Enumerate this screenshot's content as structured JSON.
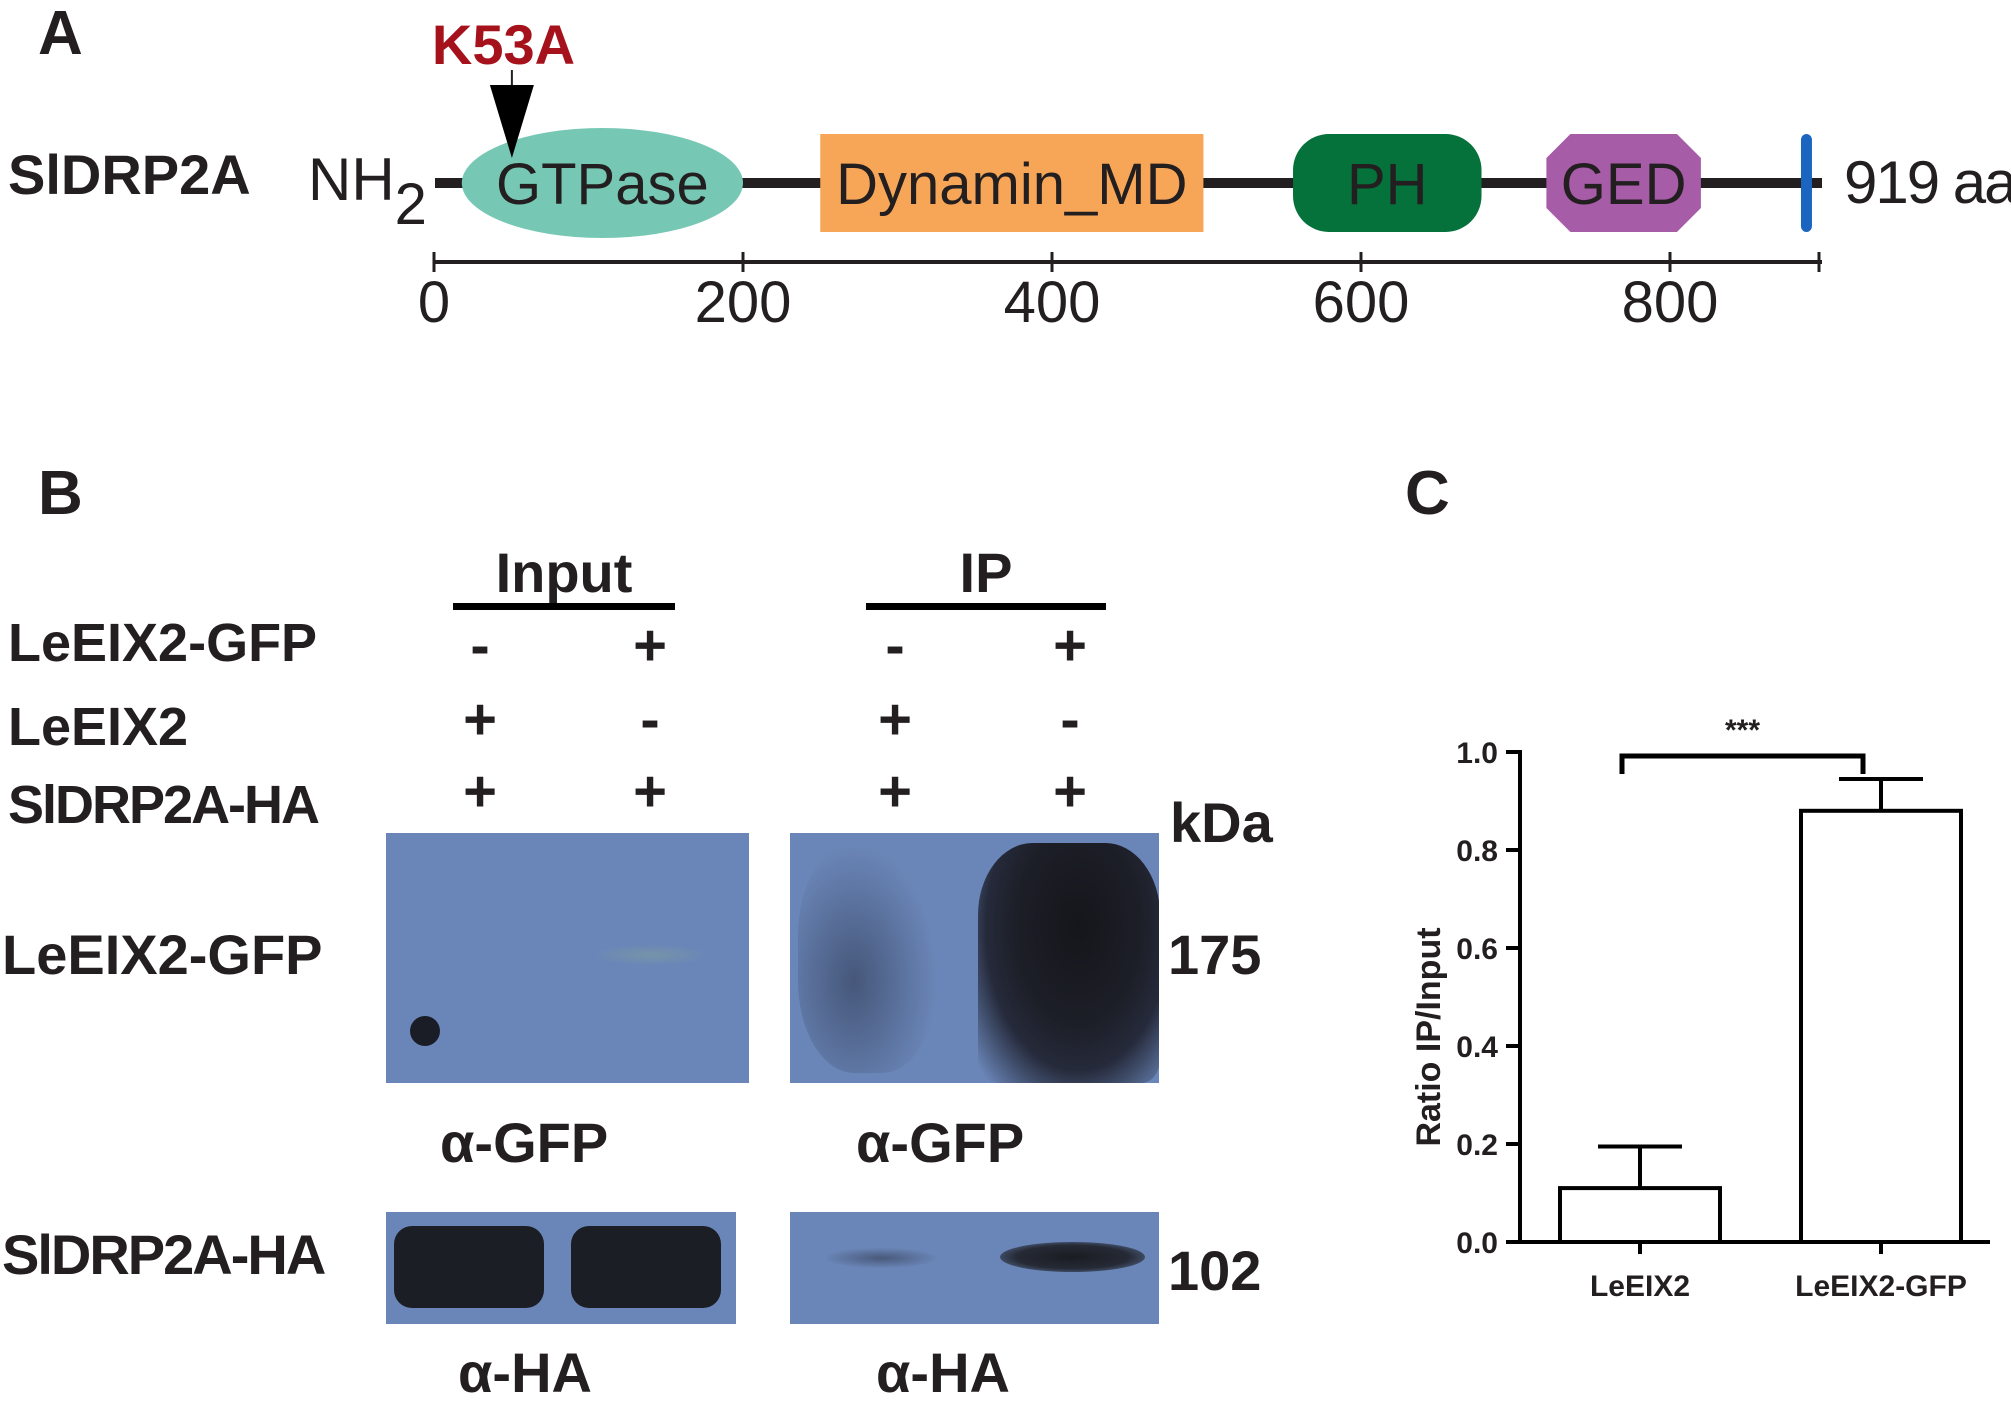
{
  "panel_a": {
    "label": "A",
    "protein_name": "SlDRP2A",
    "n_terminus": "NH",
    "n_terminus_sub": "2",
    "length_label": "919 aa",
    "mutation_label": "K53A",
    "mutation_color": "#a6121b",
    "domains": [
      {
        "name": "GTPase",
        "start": 18,
        "end": 200,
        "shape": "ellipse",
        "color": "#76c8b5"
      },
      {
        "name": "Dynamin_MD",
        "start": 250,
        "end": 498,
        "shape": "rect",
        "color": "#f7a657"
      },
      {
        "name": "PH",
        "start": 556,
        "end": 678,
        "shape": "rounded",
        "color": "#05713b"
      },
      {
        "name": "GED",
        "start": 720,
        "end": 820,
        "shape": "octagon",
        "color": "#a65ca6"
      }
    ],
    "marker": {
      "position": 888,
      "color": "#1b64c0"
    },
    "scale_ticks": [
      "0",
      "200",
      "400",
      "600",
      "800"
    ]
  },
  "panel_b": {
    "label": "B",
    "group_input": "Input",
    "group_ip": "IP",
    "row_labels": [
      "LeEIX2-GFP",
      "LeEIX2",
      "SlDRP2A-HA"
    ],
    "signs": [
      [
        "-",
        "+",
        "-",
        "+"
      ],
      [
        "+",
        "-",
        "+",
        "-"
      ],
      [
        "+",
        "+",
        "+",
        "+"
      ]
    ],
    "kda_label": "kDa",
    "blot_labels": {
      "gfp": "LeEIX2-GFP",
      "ha": "SlDRP2A-HA"
    },
    "antibody_gfp": "α-GFP",
    "antibody_ha": "α-HA",
    "mw_markers": {
      "gfp": "175",
      "ha": "102"
    },
    "blot_color": "#6a86b8"
  },
  "panel_c": {
    "label": "C",
    "chart_data": {
      "type": "bar",
      "categories": [
        "LeEIX2",
        "LeEIX2-GFP"
      ],
      "values": [
        0.11,
        0.88
      ],
      "error_bars": [
        0.085,
        0.065
      ],
      "ylabel": "Ratio IP/Input",
      "ylim": [
        0,
        1.0
      ],
      "yticks": [
        "0.0",
        "0.2",
        "0.4",
        "0.6",
        "0.8",
        "1.0"
      ],
      "significance": "***",
      "bar_fill": "#ffffff",
      "bar_edge": "#000000"
    }
  }
}
